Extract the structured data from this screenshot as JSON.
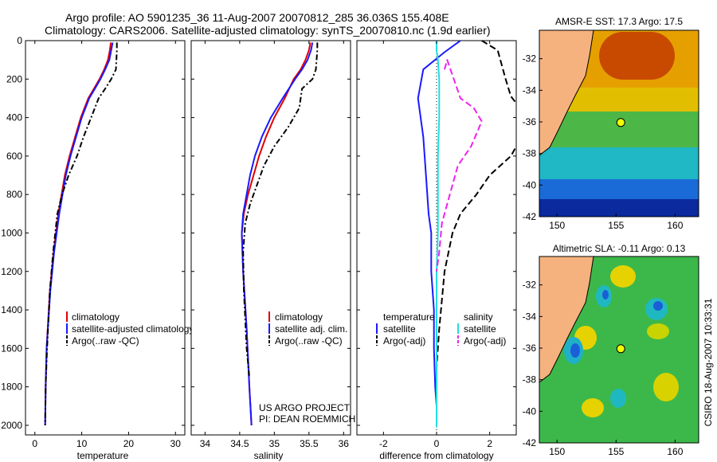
{
  "title_line1": "Argo profile: AO 5901235_36 11-Aug-2007 20070812_285 36.036S 155.408E",
  "title_line2": "Climatology: CARS2006. Satellite-adjusted climatology: synTS_20070810.nc (1.9d earlier)",
  "colors": {
    "red": "#e00000",
    "blue": "#1a1aff",
    "black": "#000000",
    "cyan": "#22dddd",
    "magenta": "#ee22ee"
  },
  "chart_data": [
    {
      "type": "line",
      "id": "temperature",
      "xlabel": "temperature",
      "ylabel": "",
      "xlim": [
        -2,
        32
      ],
      "ylim": [
        2050,
        0
      ],
      "xticks": [
        0,
        10,
        20,
        30
      ],
      "yticks": [
        0,
        200,
        400,
        600,
        800,
        1000,
        1200,
        1400,
        1600,
        1800,
        2000
      ],
      "legend": [
        "climatology",
        "satellite-adjusted climatology",
        "Argo(..raw -QC)"
      ],
      "series": [
        {
          "name": "climatology",
          "color": "red",
          "dash": "",
          "x": [
            16.2,
            16.0,
            15.6,
            14.8,
            13.8,
            12.6,
            11.4,
            9.8,
            8.6,
            7.4,
            6.4,
            5.0,
            4.0,
            3.2,
            2.5,
            2.3,
            2.2
          ],
          "y": [
            10,
            50,
            100,
            150,
            200,
            250,
            300,
            400,
            500,
            600,
            700,
            900,
            1100,
            1300,
            1600,
            1800,
            2000
          ]
        },
        {
          "name": "satellite-adjusted climatology",
          "color": "blue",
          "dash": "",
          "x": [
            16.6,
            16.3,
            15.9,
            15.0,
            14.0,
            12.8,
            11.6,
            10.0,
            8.8,
            7.6,
            6.6,
            5.2,
            4.1,
            3.3,
            2.5,
            2.3,
            2.2
          ],
          "y": [
            10,
            50,
            100,
            150,
            200,
            250,
            300,
            400,
            500,
            600,
            700,
            900,
            1100,
            1300,
            1600,
            1800,
            2000
          ]
        },
        {
          "name": "Argo(..raw -QC)",
          "color": "black",
          "dash": "7,3,2,3",
          "x": [
            17.5,
            17.5,
            17.4,
            17.3,
            16.3,
            15.0,
            13.6,
            12.0,
            10.4,
            9.0,
            7.2,
            5.8,
            4.8,
            3.9,
            3.2,
            2.6,
            2.3,
            2.2
          ],
          "y": [
            10,
            50,
            100,
            150,
            200,
            250,
            300,
            400,
            500,
            600,
            700,
            800,
            900,
            1100,
            1300,
            1600,
            1800,
            2000
          ]
        }
      ]
    },
    {
      "type": "line",
      "id": "salinity",
      "xlabel": "salinity",
      "ylabel": "",
      "xlim": [
        33.8,
        36.1
      ],
      "ylim": [
        2050,
        0
      ],
      "xticks": [
        34,
        34.5,
        35,
        35.5,
        36
      ],
      "xticklabels": [
        "34",
        "34.5",
        "35",
        "35.5",
        "36"
      ],
      "legend": [
        "climatology",
        "satellite adj. clim.",
        "Argo(..raw -QC)"
      ],
      "annotation": [
        "US ARGO PROJECT",
        "PI: DEAN ROEMMICH"
      ],
      "series": [
        {
          "name": "climatology",
          "color": "red",
          "dash": "",
          "x": [
            35.52,
            35.5,
            35.45,
            35.38,
            35.28,
            35.15,
            35.0,
            34.88,
            34.78,
            34.7,
            34.62,
            34.56,
            34.53,
            34.55,
            34.6,
            34.64,
            34.67
          ],
          "y": [
            10,
            50,
            100,
            150,
            200,
            300,
            400,
            500,
            600,
            700,
            800,
            900,
            1000,
            1200,
            1500,
            1800,
            2000
          ]
        },
        {
          "name": "satellite adj. clim.",
          "color": "blue",
          "dash": "",
          "x": [
            35.55,
            35.53,
            35.48,
            35.4,
            35.3,
            35.12,
            34.95,
            34.82,
            34.72,
            34.65,
            34.6,
            34.55,
            34.53,
            34.55,
            34.6,
            34.64,
            34.67
          ],
          "y": [
            10,
            50,
            100,
            150,
            200,
            300,
            400,
            500,
            600,
            700,
            800,
            900,
            1000,
            1200,
            1500,
            1800,
            2000
          ]
        },
        {
          "name": "Argo(..raw -QC)",
          "color": "black",
          "dash": "7,3,2,3",
          "x": [
            35.62,
            35.62,
            35.61,
            35.6,
            35.55,
            35.4,
            35.38,
            35.36,
            35.2,
            35.0,
            34.85,
            34.75,
            34.65,
            34.58,
            34.55,
            34.56,
            34.6,
            34.64
          ],
          "y": [
            10,
            50,
            100,
            150,
            200,
            250,
            300,
            350,
            450,
            550,
            650,
            750,
            850,
            950,
            1100,
            1300,
            1600,
            1750
          ]
        }
      ]
    },
    {
      "type": "line",
      "id": "difference",
      "xlabel": "difference from climatology",
      "ylabel": "",
      "xlim": [
        -3,
        3
      ],
      "ylim": [
        2050,
        0
      ],
      "xticks": [
        -2,
        0,
        2
      ],
      "xticklabels": [
        "-2",
        "0",
        "2"
      ],
      "zero_line": "dotted",
      "legend_temperature": {
        "heading": "temperature",
        "items": [
          "satellite",
          "Argo(-adj)"
        ]
      },
      "legend_salinity": {
        "heading": "salinity",
        "items": [
          "satellite",
          "Argo(-adj)"
        ]
      },
      "series": [
        {
          "name": "temperature satellite",
          "color": "blue",
          "dash": "",
          "x": [
            0.9,
            0.3,
            -0.5,
            -0.7,
            -0.5,
            -0.4,
            -0.3,
            -0.2,
            -0.2,
            -0.1,
            -0.1,
            -0.05,
            0.0,
            0.0,
            0.0
          ],
          "y": [
            0,
            60,
            150,
            300,
            500,
            700,
            900,
            1000,
            1200,
            1400,
            1600,
            1800,
            1900,
            2000,
            2010
          ]
        },
        {
          "name": "temperature Argo(-adj)",
          "color": "black",
          "dash": "8,4",
          "x": [
            1.7,
            2.3,
            2.6,
            2.8,
            3.2,
            3.2,
            2.8,
            2.0,
            1.5,
            0.9,
            0.6,
            0.3,
            0.1,
            0.0
          ],
          "y": [
            0,
            50,
            200,
            290,
            360,
            500,
            600,
            700,
            800,
            900,
            1000,
            1200,
            1500,
            1700
          ]
        },
        {
          "name": "salinity satellite",
          "color": "cyan",
          "dash": "",
          "x": [
            0.0,
            0.0,
            0.05,
            0.1,
            0.1,
            0.05,
            0.05,
            0.05,
            0.0,
            0.0,
            0.0,
            0.0
          ],
          "y": [
            0,
            50,
            100,
            200,
            400,
            600,
            800,
            1000,
            1200,
            1500,
            1800,
            2010
          ]
        },
        {
          "name": "salinity Argo(-adj)",
          "color": "magenta",
          "dash": "8,4",
          "x": [
            0.3,
            0.4,
            0.9,
            1.4,
            1.7,
            1.3,
            0.8,
            0.6,
            0.4,
            0.2,
            0.1,
            0.0
          ],
          "y": [
            150,
            100,
            300,
            350,
            420,
            550,
            650,
            750,
            850,
            950,
            1100,
            1200
          ]
        }
      ]
    }
  ],
  "maps": [
    {
      "id": "sst",
      "title": "AMSR-E SST: 17.3 Argo: 17.5",
      "xticks": [
        150,
        155,
        160
      ],
      "xticklabels": [
        "150",
        "155",
        "160"
      ],
      "yticks": [
        -32,
        -34,
        -36,
        -38,
        -40,
        -42
      ],
      "yticklabels": [
        "-32",
        "-34",
        "-36",
        "-38",
        "-40",
        "-42"
      ],
      "lon_range": [
        148.5,
        162
      ],
      "lat_range": [
        -30.2,
        -42
      ],
      "marker": {
        "lon": 155.4,
        "lat": -36.04
      }
    },
    {
      "id": "sla",
      "title": "Altimetric SLA: -0.11 Argo: 0.13",
      "xticks": [
        150,
        155,
        160
      ],
      "xticklabels": [
        "150",
        "155",
        "160"
      ],
      "yticks": [
        -32,
        -34,
        -36,
        -38,
        -40,
        -42
      ],
      "yticklabels": [
        "-32",
        "-34",
        "-36",
        "-38",
        "-40",
        "-42"
      ],
      "lon_range": [
        148.5,
        162
      ],
      "lat_range": [
        -30.2,
        -42
      ],
      "marker": {
        "lon": 155.4,
        "lat": -36.04
      }
    }
  ],
  "side_label": "CSIRO 18-Aug-2007 10:33:31"
}
